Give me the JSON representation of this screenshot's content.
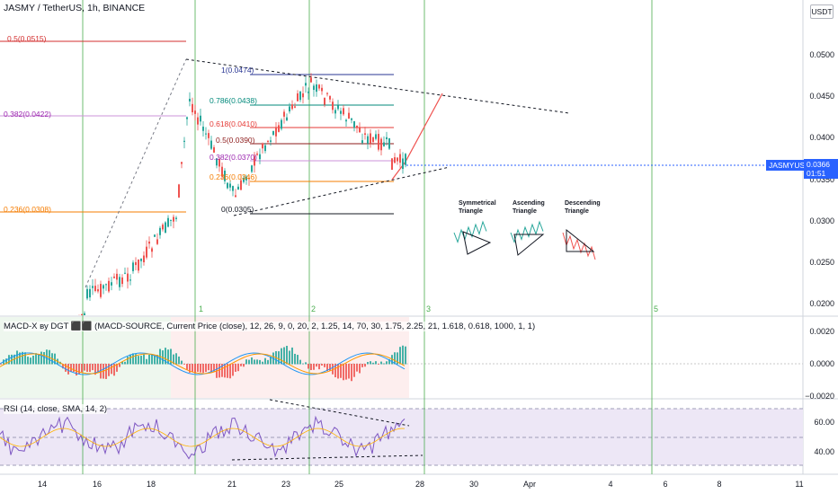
{
  "header": {
    "symbol_line": "JASMY / TetherUS, 1h, BINANCE"
  },
  "currency_button": "USDT",
  "price_axis": [
    "0.0500",
    "0.0450",
    "0.0400",
    "0.0350",
    "0.0300",
    "0.0250",
    "0.0200"
  ],
  "current": {
    "symbol": "JASMYUSDT",
    "price": "0.0366",
    "countdown": "01:51"
  },
  "date_axis": [
    "14",
    "16",
    "18",
    "21",
    "23",
    "25",
    "28",
    "30",
    "Apr",
    "4",
    "6",
    "8",
    "11"
  ],
  "fib_left": [
    {
      "label": "0.5(0.0515)",
      "color": "#d32f2f"
    },
    {
      "label": "0.382(0.0422)",
      "color": "#9c27b0"
    },
    {
      "label": "0.236(0.0308)",
      "color": "#f57c00"
    }
  ],
  "fib_right": [
    {
      "label": "1(0.0474)",
      "color": "#283593"
    },
    {
      "label": "0.786(0.0438)",
      "color": "#00897b"
    },
    {
      "label": "0.618(0.0410)",
      "color": "#e53935"
    },
    {
      "label": "0.5(0.0390)",
      "color": "#8d1b1b"
    },
    {
      "label": "0.382(0.0370)",
      "color": "#9c27b0"
    },
    {
      "label": "0.236(0.0346)",
      "color": "#f57c00"
    },
    {
      "label": "0(0.0305)",
      "color": "#131722"
    }
  ],
  "cycle_numbers": [
    "1",
    "2",
    "3",
    "5"
  ],
  "patterns": {
    "symmetrical": "Symmetrical Triangle",
    "ascending": "Ascending Triangle",
    "descending": "Descending Triangle"
  },
  "macd": {
    "title": "MACD-X ву DGT ⬛⬛ (MACD-SOURCE, Current Price (close), 12, 26, 9, 0, 20, 2, 1.25, 14, 70, 30, 1.75, 2.25, 21, 1.618, 0.618, 1000, 1, 1)",
    "axis": [
      "0.0020",
      "0.0000",
      "−0.0020"
    ]
  },
  "rsi": {
    "title": "RSI (14, close, SMA, 14, 2)",
    "axis": [
      "60.00",
      "40.00"
    ]
  },
  "colors": {
    "bull": "#26a69a",
    "bear": "#ef5350",
    "accent": "#2962ff",
    "cycle": "#4caf50",
    "rsi_line": "#7e57c2",
    "rsi_band": "#ede7f6"
  }
}
